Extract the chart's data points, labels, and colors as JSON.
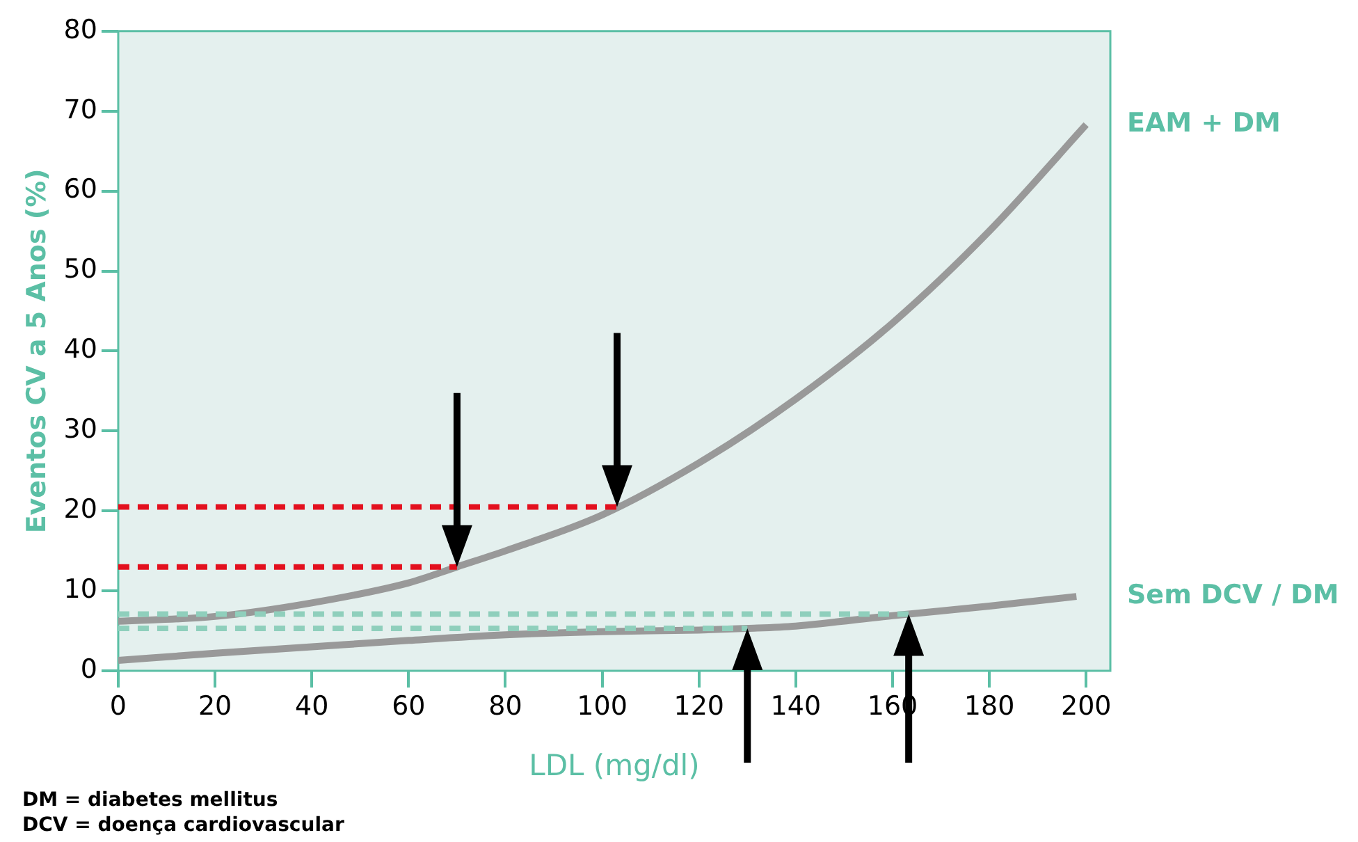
{
  "chart_data": {
    "type": "line",
    "xlabel": "LDL (mg/dl)",
    "ylabel": "Eventos CV a 5 Anos (%)",
    "xlim": [
      0,
      205
    ],
    "xticks": [
      0,
      20,
      40,
      60,
      80,
      100,
      120,
      140,
      160,
      180,
      200
    ],
    "ylim": [
      0,
      80
    ],
    "yticks": [
      0,
      10,
      20,
      30,
      40,
      50,
      60,
      70,
      80
    ],
    "series": [
      {
        "name": "EAM + DM",
        "color": "#999999",
        "x": [
          0,
          20,
          40,
          60,
          70,
          80,
          100,
          120,
          140,
          160,
          180,
          200
        ],
        "values": [
          6.2,
          6.8,
          8.5,
          11,
          13,
          15,
          19.5,
          26,
          34,
          43.5,
          55,
          68.3
        ]
      },
      {
        "name": "Sem DCV / DM",
        "color": "#999999",
        "x": [
          0,
          20,
          40,
          60,
          80,
          100,
          120,
          130,
          140,
          160,
          180,
          198
        ],
        "values": [
          1.3,
          2.2,
          3,
          3.8,
          4.5,
          4.9,
          5.1,
          5.3,
          5.6,
          6.9,
          8.1,
          9.3
        ]
      }
    ],
    "ref_lines": [
      {
        "axis": "y",
        "value": 20.5,
        "color": "#e3101e",
        "line_style": "dashed"
      },
      {
        "axis": "y",
        "value": 13,
        "color": "#e3101e",
        "line_style": "dashed"
      },
      {
        "axis": "y",
        "value": 7.1,
        "color": "#8fcfbc",
        "line_style": "dashed"
      },
      {
        "axis": "y",
        "value": 5.3,
        "color": "#8fcfbc",
        "line_style": "dashed"
      }
    ],
    "annotations": [
      "DM = diabetes mellitus",
      "DCV = doença cardiovascular"
    ],
    "grid": false,
    "legend": false,
    "marker": "none",
    "line_style": "solid"
  }
}
